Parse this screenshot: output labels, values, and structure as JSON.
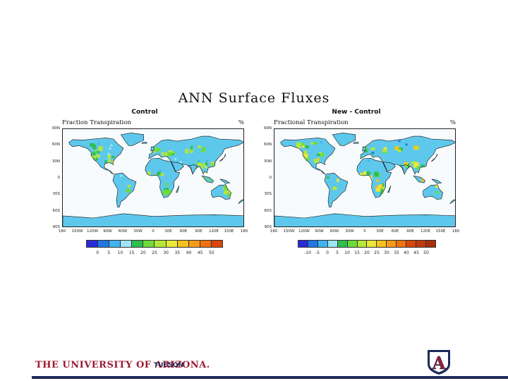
{
  "title": "ANN  Surface  Fluxes",
  "panels": [
    {
      "title": "Control",
      "variable": "Fraction Transpiration",
      "units": "%",
      "colorbar_labels": [
        "0",
        "5",
        "10",
        "15",
        "20",
        "25",
        "30",
        "35",
        "40",
        "45",
        "50"
      ],
      "colorbar_colors": [
        "#2a2ad6",
        "#1f78e6",
        "#3fb4f0",
        "#9ee4f5",
        "#2fbf4d",
        "#6ddc3b",
        "#b6e63a",
        "#e9e83a",
        "#f7c21d",
        "#f79b17",
        "#f0710f",
        "#d9460c"
      ]
    },
    {
      "title": "New - Control",
      "variable": "Fractional Transpiration",
      "units": "%",
      "colorbar_labels": [
        "-10",
        "-5",
        "0",
        "5",
        "10",
        "15",
        "20",
        "25",
        "30",
        "35",
        "40",
        "45",
        "50"
      ],
      "colorbar_colors": [
        "#2a2ad6",
        "#1f78e6",
        "#3fb4f0",
        "#9ee4f5",
        "#2fbf4d",
        "#6ddc3b",
        "#b6e63a",
        "#e9e83a",
        "#f7c21d",
        "#f79b17",
        "#f0710f",
        "#d9460c",
        "#c0390b",
        "#a92d0a"
      ]
    }
  ],
  "lat_labels": [
    "90N",
    "60N",
    "30N",
    "0",
    "30S",
    "60S",
    "90S"
  ],
  "lon_labels": [
    "180",
    "150W",
    "120W",
    "90W",
    "60W",
    "30W",
    "0",
    "30E",
    "60E",
    "90E",
    "120E",
    "150E",
    "180"
  ],
  "footer": {
    "university": "THE UNIVERSITY OF ARIZONA.",
    "city": "TUCSON",
    "logo_letter": "A",
    "colors": {
      "red": "#9b1b30",
      "navy": "#1d2a59"
    }
  }
}
